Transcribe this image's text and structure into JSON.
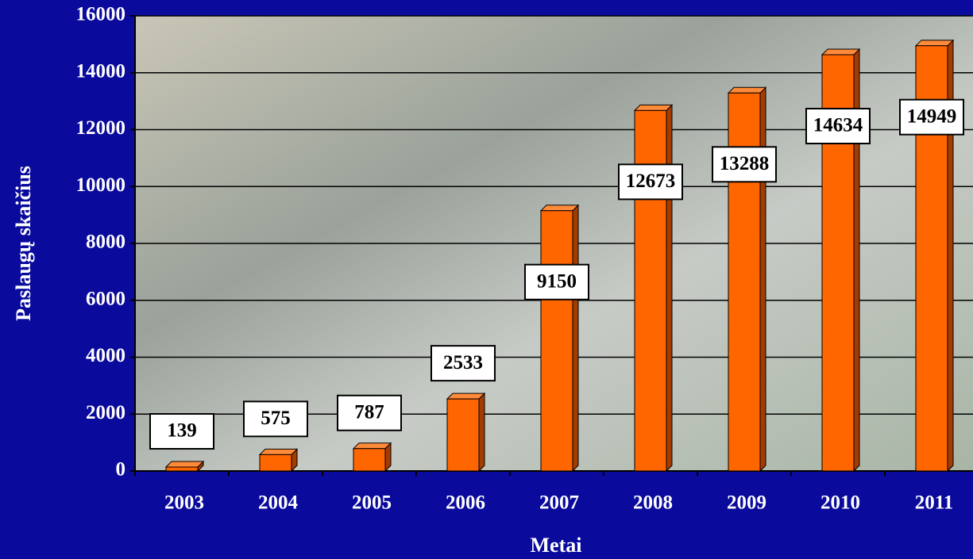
{
  "chart_data": {
    "type": "bar3d",
    "xlabel": "Metai",
    "ylabel": "Paslaugų skaičius",
    "categories": [
      "2003",
      "2004",
      "2005",
      "2006",
      "2007",
      "2008",
      "2009",
      "2010",
      "2011"
    ],
    "values": [
      139,
      575,
      787,
      2533,
      9150,
      12673,
      13288,
      14634,
      14949
    ],
    "color": "#ff6600",
    "ylim": [
      0,
      16000
    ],
    "yticks": [
      0,
      2000,
      4000,
      6000,
      8000,
      10000,
      12000,
      14000,
      16000
    ],
    "grid": true
  }
}
